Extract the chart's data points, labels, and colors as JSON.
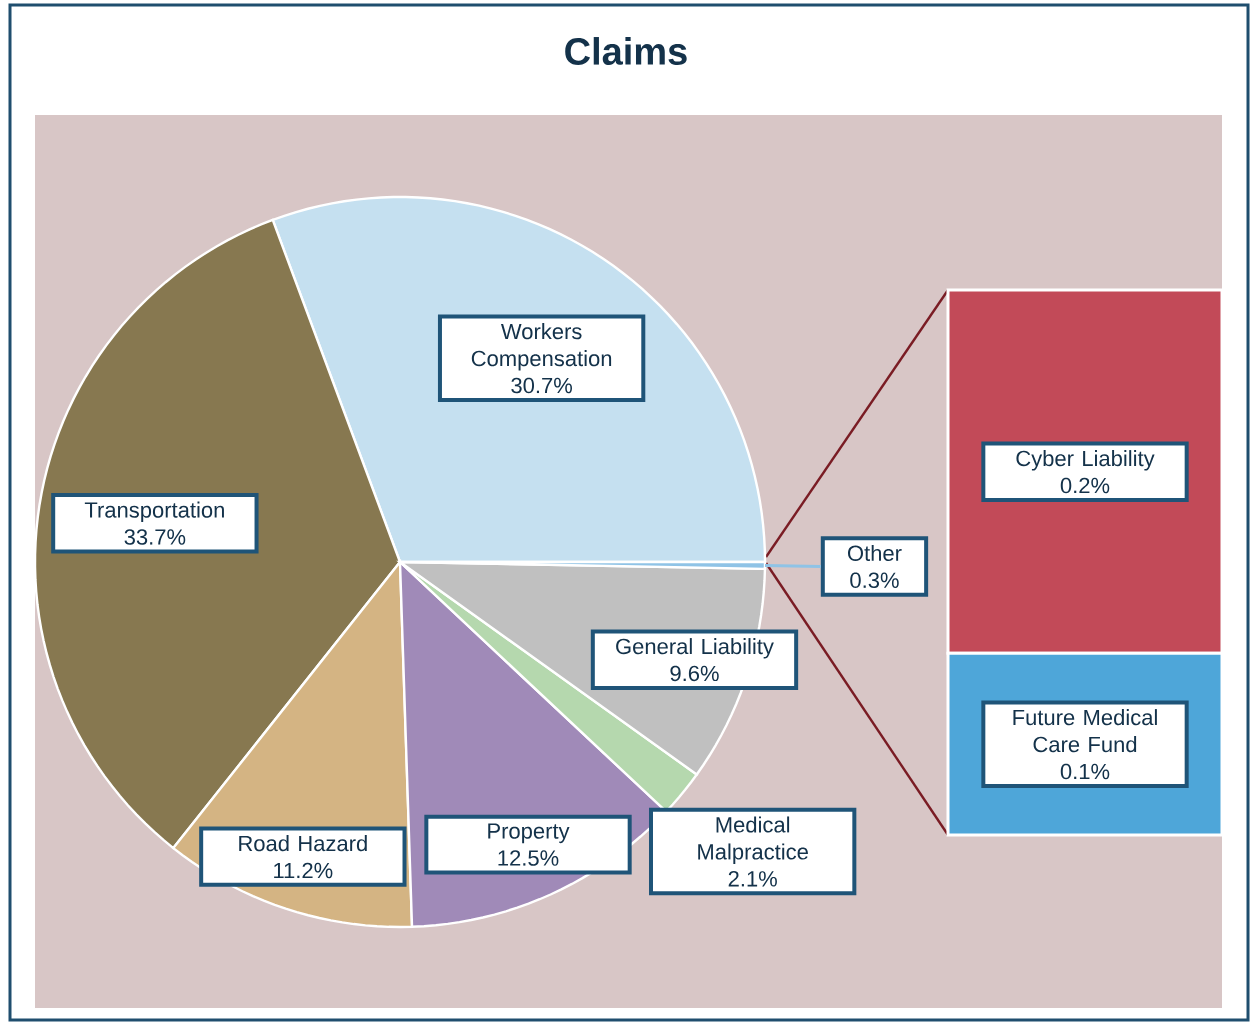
{
  "chart_data": [
    {
      "type": "pie",
      "title": "Claims",
      "categories": [
        "Workers Compensation",
        "Transportation",
        "Road Hazard",
        "Property",
        "Medical Malpractice",
        "General Liability",
        "Other"
      ],
      "values": [
        30.7,
        33.7,
        11.2,
        12.5,
        2.1,
        9.6,
        0.3
      ],
      "value_labels": [
        "30.7%",
        "33.7%",
        "11.2%",
        "12.5%",
        "2.1%",
        "9.6%",
        "0.3%"
      ],
      "colors": [
        "#c5e0f0",
        "#877850",
        "#d4b483",
        "#a08ab8",
        "#b5d8ae",
        "#c0c0c0",
        "#8fc3e6"
      ]
    },
    {
      "type": "bar",
      "stacked": true,
      "categories": [
        null
      ],
      "series": [
        {
          "name": "Future Medical Care Fund",
          "color": "#4ea6d9",
          "values": [
            0.1
          ],
          "value_labels": [
            "0.1%"
          ]
        },
        {
          "name": "Cyber Liability",
          "color": "#c24a58",
          "values": [
            0.2
          ],
          "value_labels": [
            "0.2%"
          ]
        }
      ]
    }
  ]
}
